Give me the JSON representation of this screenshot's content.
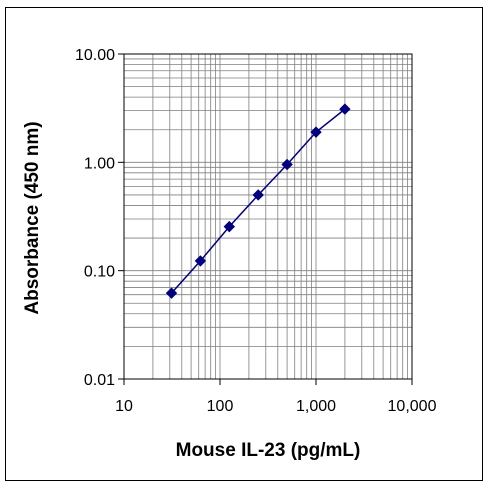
{
  "chart_data": {
    "type": "line",
    "title": "",
    "xlabel": "Mouse IL-23 (pg/mL)",
    "ylabel": "Absorbance (450 nm)",
    "x_scale": "log",
    "y_scale": "log",
    "xlim": [
      10,
      10000
    ],
    "ylim": [
      0.01,
      10
    ],
    "x_ticks": [
      "10",
      "100",
      "1,000",
      "10,000"
    ],
    "y_ticks": [
      "10.00",
      "1.00",
      "0.10",
      "0.01"
    ],
    "grid": "major and minor (log)",
    "legend": "none",
    "series": [
      {
        "x": [
          31.25,
          62.5,
          125,
          250,
          500,
          1000,
          2000
        ],
        "y": [
          0.062,
          0.123,
          0.255,
          0.5,
          0.955,
          1.9,
          3.1
        ]
      }
    ],
    "colors": {
      "series": "#000080",
      "grid": "#7f7f7f",
      "axis": "#000000"
    }
  }
}
